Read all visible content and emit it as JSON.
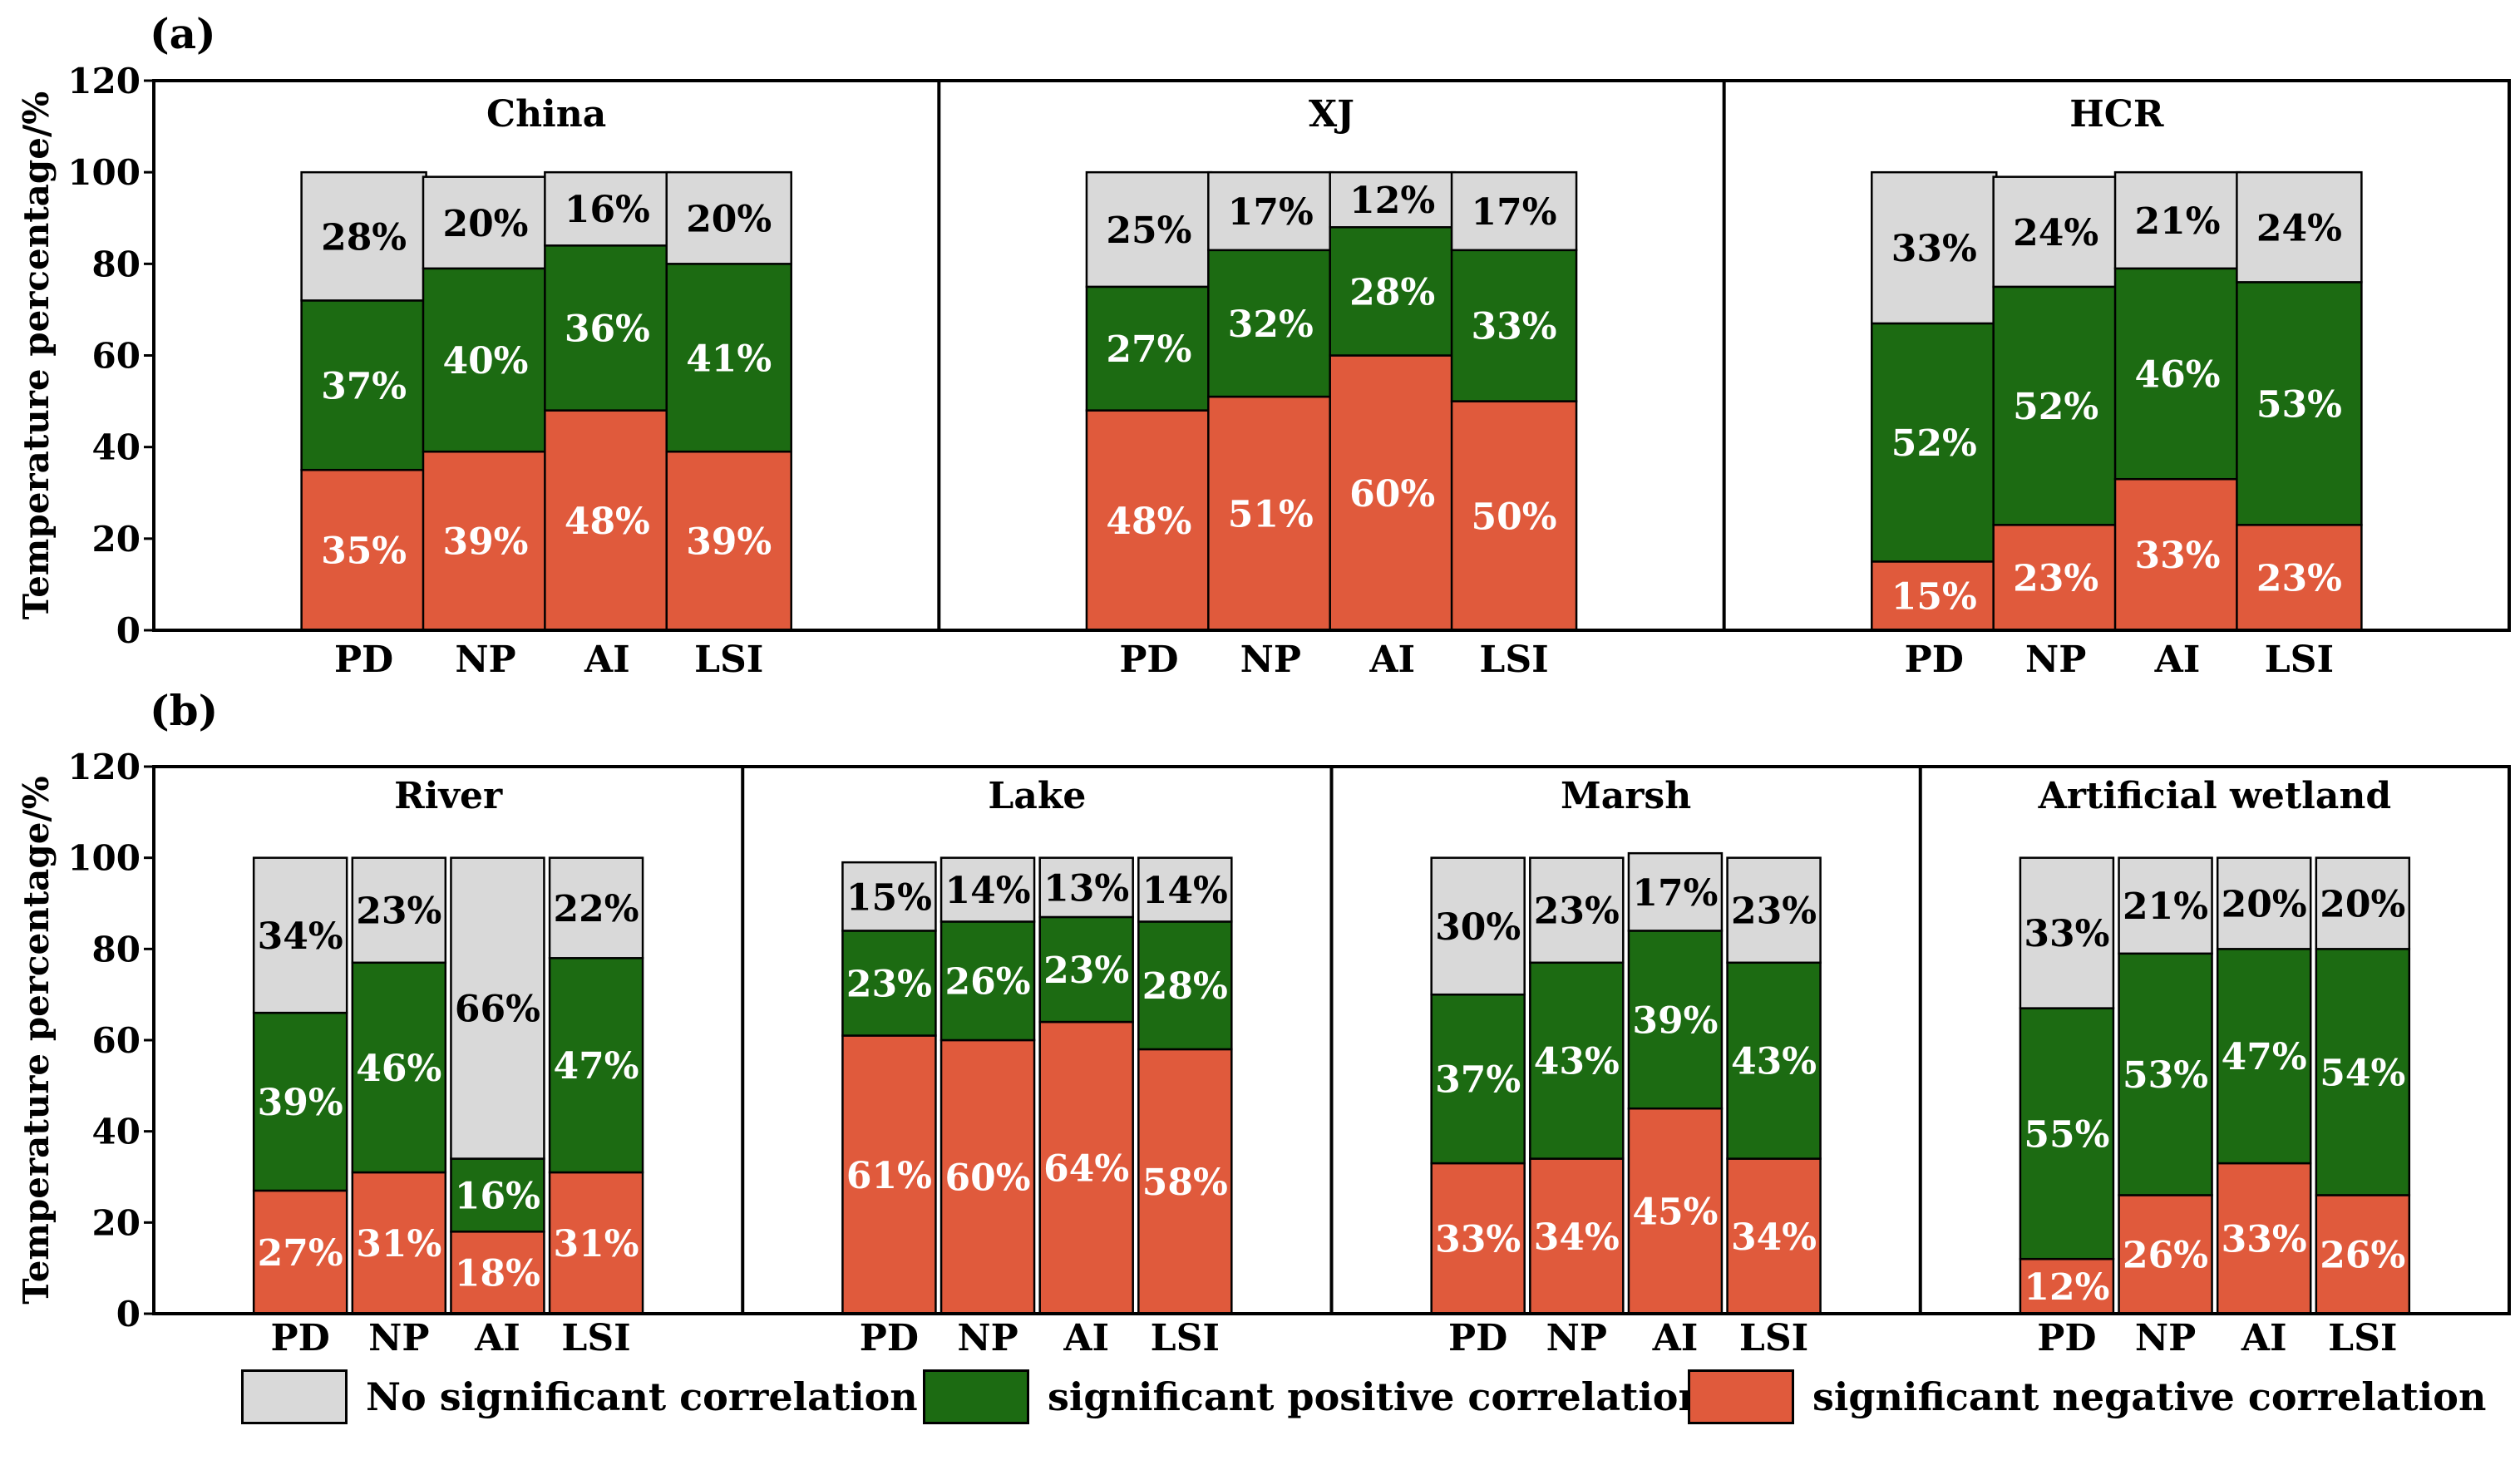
{
  "chart_data": [
    {
      "type": "bar",
      "stacked": true,
      "panel_label": "(a)",
      "ylabel": "Temperature percentage/%",
      "ylim": [
        0,
        120
      ],
      "yticks": [
        "0",
        "20",
        "40",
        "60",
        "80",
        "100",
        "120"
      ],
      "categories": [
        "PD",
        "NP",
        "AI",
        "LSI"
      ],
      "groups": [
        {
          "name": "China",
          "series": [
            {
              "name": "significant negative correlation",
              "values": [
                35,
                39,
                48,
                39
              ],
              "labels": [
                "35%",
                "39%",
                "48%",
                "39%"
              ]
            },
            {
              "name": "significant positive correlation",
              "values": [
                37,
                40,
                36,
                41
              ],
              "labels": [
                "37%",
                "40%",
                "36%",
                "41%"
              ]
            },
            {
              "name": "No significant correlation",
              "values": [
                28,
                20,
                16,
                20
              ],
              "labels": [
                "28%",
                "20%",
                "16%",
                "20%"
              ]
            }
          ]
        },
        {
          "name": "XJ",
          "series": [
            {
              "name": "significant negative correlation",
              "values": [
                48,
                51,
                60,
                50
              ],
              "labels": [
                "48%",
                "51%",
                "60%",
                "50%"
              ]
            },
            {
              "name": "significant positive correlation",
              "values": [
                27,
                32,
                28,
                33
              ],
              "labels": [
                "27%",
                "32%",
                "28%",
                "33%"
              ]
            },
            {
              "name": "No significant correlation",
              "values": [
                25,
                17,
                12,
                17
              ],
              "labels": [
                "25%",
                "17%",
                "12%",
                "17%"
              ]
            }
          ]
        },
        {
          "name": "HCR",
          "series": [
            {
              "name": "significant negative correlation",
              "values": [
                15,
                23,
                33,
                23
              ],
              "labels": [
                "15%",
                "23%",
                "33%",
                "23%"
              ]
            },
            {
              "name": "significant positive correlation",
              "values": [
                52,
                52,
                46,
                53
              ],
              "labels": [
                "52%",
                "52%",
                "46%",
                "53%"
              ]
            },
            {
              "name": "No significant correlation",
              "values": [
                33,
                24,
                21,
                24
              ],
              "labels": [
                "33%",
                "24%",
                "21%",
                "24%"
              ]
            }
          ]
        }
      ]
    },
    {
      "type": "bar",
      "stacked": true,
      "panel_label": "(b)",
      "ylabel": "Temperature percentage/%",
      "ylim": [
        0,
        120
      ],
      "yticks": [
        "0",
        "20",
        "40",
        "60",
        "80",
        "100",
        "120"
      ],
      "categories": [
        "PD",
        "NP",
        "AI",
        "LSI"
      ],
      "groups": [
        {
          "name": "River",
          "series": [
            {
              "name": "significant negative correlation",
              "values": [
                27,
                31,
                18,
                31
              ],
              "labels": [
                "27%",
                "31%",
                "18%",
                "31%"
              ]
            },
            {
              "name": "significant positive correlation",
              "values": [
                39,
                46,
                16,
                47
              ],
              "labels": [
                "39%",
                "46%",
                "16%",
                "47%"
              ]
            },
            {
              "name": "No significant correlation",
              "values": [
                34,
                23,
                66,
                22
              ],
              "labels": [
                "34%",
                "23%",
                "66%",
                "22%"
              ]
            }
          ]
        },
        {
          "name": "Lake",
          "series": [
            {
              "name": "significant negative correlation",
              "values": [
                61,
                60,
                64,
                58
              ],
              "labels": [
                "61%",
                "60%",
                "64%",
                "58%"
              ]
            },
            {
              "name": "significant positive correlation",
              "values": [
                23,
                26,
                23,
                28
              ],
              "labels": [
                "23%",
                "26%",
                "23%",
                "28%"
              ]
            },
            {
              "name": "No significant correlation",
              "values": [
                15,
                14,
                13,
                14
              ],
              "labels": [
                "15%",
                "14%",
                "13%",
                "14%"
              ]
            }
          ]
        },
        {
          "name": "Marsh",
          "series": [
            {
              "name": "significant negative correlation",
              "values": [
                33,
                34,
                45,
                34
              ],
              "labels": [
                "33%",
                "34%",
                "45%",
                "34%"
              ]
            },
            {
              "name": "significant positive correlation",
              "values": [
                37,
                43,
                39,
                43
              ],
              "labels": [
                "37%",
                "43%",
                "39%",
                "43%"
              ]
            },
            {
              "name": "No significant correlation",
              "values": [
                30,
                23,
                17,
                23
              ],
              "labels": [
                "30%",
                "23%",
                "17%",
                "23%"
              ]
            }
          ]
        },
        {
          "name": "Artificial wetland",
          "series": [
            {
              "name": "significant negative correlation",
              "values": [
                12,
                26,
                33,
                26
              ],
              "labels": [
                "12%",
                "26%",
                "33%",
                "26%"
              ]
            },
            {
              "name": "significant positive correlation",
              "values": [
                55,
                53,
                47,
                54
              ],
              "labels": [
                "55%",
                "53%",
                "47%",
                "54%"
              ]
            },
            {
              "name": "No significant correlation",
              "values": [
                33,
                21,
                20,
                20
              ],
              "labels": [
                "33%",
                "21%",
                "20%",
                "20%"
              ]
            }
          ]
        }
      ]
    }
  ],
  "colors": {
    "significant negative correlation": "#e05a3c",
    "significant positive correlation": "#1c6b12",
    "No significant correlation": "#d9d9d9",
    "label_on_dark": "#ffffff",
    "label_on_light": "#000000"
  },
  "legend": {
    "placement": "bottom",
    "items": [
      {
        "label": "No significant correlation",
        "color": "#d9d9d9"
      },
      {
        "label": "significant positive correlation",
        "color": "#1c6b12"
      },
      {
        "label": "significant negative correlation",
        "color": "#e05a3c"
      }
    ]
  }
}
